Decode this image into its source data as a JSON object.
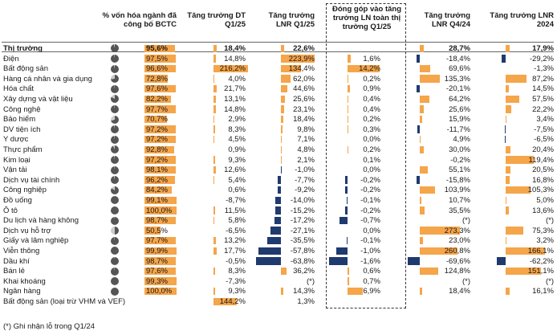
{
  "chart_data": {
    "type": "table",
    "columns": [
      {
        "key": "pct",
        "label": "% vốn hóa ngành đã công bố BCTC"
      },
      {
        "key": "dt",
        "label": "Tăng trưởng DT Q1/25"
      },
      {
        "key": "lnr",
        "label": "Tăng trưởng LNR Q1/25"
      },
      {
        "key": "contrib",
        "label": "Đóng góp vào tăng trưởng LN toàn thị trường Q1/25"
      },
      {
        "key": "q424",
        "label": "Tăng trưởng LNR Q4/24"
      },
      {
        "key": "y24",
        "label": "Tăng trưởng LNR 2024"
      }
    ],
    "colors": {
      "positive": "#f5a54a",
      "negative": "#1f3a6e",
      "highlight": "#f5a54a",
      "pie_fill": "#555555",
      "pie_bg": "#cccccc"
    },
    "rows": [
      {
        "name": "Thị trường",
        "bold": true,
        "pct": "95,6%",
        "dt": "18,4%",
        "lnr": "22,6%",
        "contrib": "",
        "q424": "28,7%",
        "y24": "17,9%",
        "pct_v": 95.6,
        "dt_v": 18.4,
        "lnr_v": 22.6,
        "contrib_v": null,
        "q424_v": 28.7,
        "y24_v": 17.9
      },
      {
        "name": "Điện",
        "pct": "97,5%",
        "dt": "14,8%",
        "lnr": "223,9%",
        "contrib": "1,6%",
        "q424": "-18,4%",
        "y24": "-29,2%",
        "pct_v": 97.5,
        "dt_v": 14.8,
        "lnr_v": 223.9,
        "contrib_v": 1.6,
        "q424_v": -18.4,
        "y24_v": -29.2
      },
      {
        "name": "Bất động sản",
        "pct": "96,6%",
        "dt": "216,2%",
        "lnr": "134,4%",
        "contrib": "14,2%",
        "q424": "69,6%",
        "y24": "-1,3%",
        "pct_v": 96.6,
        "dt_v": 216.2,
        "lnr_v": 134.4,
        "contrib_v": 14.2,
        "q424_v": 69.6,
        "y24_v": -1.3
      },
      {
        "name": "Hàng cá nhân và gia dụng",
        "pct": "72,8%",
        "dt": "4,0%",
        "lnr": "62,0%",
        "contrib": "0,2%",
        "q424": "135,3%",
        "y24": "87,2%",
        "pct_v": 72.8,
        "dt_v": 4.0,
        "lnr_v": 62.0,
        "contrib_v": 0.2,
        "q424_v": 135.3,
        "y24_v": 87.2
      },
      {
        "name": "Hóa chất",
        "pct": "97,6%",
        "dt": "21,7%",
        "lnr": "44,6%",
        "contrib": "0,9%",
        "q424": "-20,1%",
        "y24": "14,5%",
        "pct_v": 97.6,
        "dt_v": 21.7,
        "lnr_v": 44.6,
        "contrib_v": 0.9,
        "q424_v": -20.1,
        "y24_v": 14.5
      },
      {
        "name": "Xây dựng và vật liệu",
        "pct": "82,2%",
        "dt": "13,1%",
        "lnr": "25,6%",
        "contrib": "0,4%",
        "q424": "64,2%",
        "y24": "57,5%",
        "pct_v": 82.2,
        "dt_v": 13.1,
        "lnr_v": 25.6,
        "contrib_v": 0.4,
        "q424_v": 64.2,
        "y24_v": 57.5
      },
      {
        "name": "Công nghệ",
        "pct": "97,7%",
        "dt": "14,8%",
        "lnr": "23,1%",
        "contrib": "0,4%",
        "q424": "25,6%",
        "y24": "22,2%",
        "pct_v": 97.7,
        "dt_v": 14.8,
        "lnr_v": 23.1,
        "contrib_v": 0.4,
        "q424_v": 25.6,
        "y24_v": 22.2
      },
      {
        "name": "Bảo hiểm",
        "pct": "70,7%",
        "dt": "2,9%",
        "lnr": "18,4%",
        "contrib": "0,2%",
        "q424": "15,9%",
        "y24": "3,4%",
        "pct_v": 70.7,
        "dt_v": 2.9,
        "lnr_v": 18.4,
        "contrib_v": 0.2,
        "q424_v": 15.9,
        "y24_v": 3.4
      },
      {
        "name": "DV tiện ích",
        "pct": "97,2%",
        "dt": "8,3%",
        "lnr": "9,8%",
        "contrib": "0,3%",
        "q424": "-11,7%",
        "y24": "-7,5%",
        "pct_v": 97.2,
        "dt_v": 8.3,
        "lnr_v": 9.8,
        "contrib_v": 0.3,
        "q424_v": -11.7,
        "y24_v": -7.5
      },
      {
        "name": "Y dược",
        "pct": "97,2%",
        "dt": "4,5%",
        "lnr": "7,1%",
        "contrib": "0,0%",
        "q424": "4,9%",
        "y24": "-6,5%",
        "pct_v": 97.2,
        "dt_v": 4.5,
        "lnr_v": 7.1,
        "contrib_v": 0.0,
        "q424_v": 4.9,
        "y24_v": -6.5
      },
      {
        "name": "Thực phẩm",
        "pct": "92,8%",
        "dt": "0,9%",
        "lnr": "4,8%",
        "contrib": "0,2%",
        "q424": "30,0%",
        "y24": "20,4%",
        "pct_v": 92.8,
        "dt_v": 0.9,
        "lnr_v": 4.8,
        "contrib_v": 0.2,
        "q424_v": 30.0,
        "y24_v": 20.4
      },
      {
        "name": "Kim loại",
        "pct": "97,2%",
        "dt": "9,3%",
        "lnr": "2,1%",
        "contrib": "0,1%",
        "q424": "-0,2%",
        "y24": "119,4%",
        "pct_v": 97.2,
        "dt_v": 9.3,
        "lnr_v": 2.1,
        "contrib_v": 0.1,
        "q424_v": -0.2,
        "y24_v": 119.4
      },
      {
        "name": "Vận tải",
        "pct": "98,1%",
        "dt": "12,6%",
        "lnr": "-1,0%",
        "contrib": "0,0%",
        "q424": "55,1%",
        "y24": "20,5%",
        "pct_v": 98.1,
        "dt_v": 12.6,
        "lnr_v": -1.0,
        "contrib_v": 0.0,
        "q424_v": 55.1,
        "y24_v": 20.5
      },
      {
        "name": "Dịch vụ tài chính",
        "pct": "96,2%",
        "dt": "5,4%",
        "lnr": "-7,7%",
        "contrib": "-0,2%",
        "q424": "-15,8%",
        "y24": "16,8%",
        "pct_v": 96.2,
        "dt_v": 5.4,
        "lnr_v": -7.7,
        "contrib_v": -0.2,
        "q424_v": -15.8,
        "y24_v": 16.8
      },
      {
        "name": "Công nghiệp",
        "pct": "84,2%",
        "dt": "0,6%",
        "lnr": "-9,2%",
        "contrib": "-0,2%",
        "q424": "103,9%",
        "y24": "105,3%",
        "pct_v": 84.2,
        "dt_v": 0.6,
        "lnr_v": -9.2,
        "contrib_v": -0.2,
        "q424_v": 103.9,
        "y24_v": 105.3
      },
      {
        "name": "Đồ uống",
        "pct": "99,1%",
        "dt": "-8,7%",
        "lnr": "-14,0%",
        "contrib": "-0,1%",
        "q424": "10,7%",
        "y24": "5,0%",
        "pct_v": 99.1,
        "dt_v": -8.7,
        "lnr_v": -14.0,
        "contrib_v": -0.1,
        "q424_v": 10.7,
        "y24_v": 5.0
      },
      {
        "name": "Ô tô",
        "pct": "100,0%",
        "dt": "11,5%",
        "lnr": "-15,2%",
        "contrib": "-0,2%",
        "q424": "35,5%",
        "y24": "13,6%",
        "pct_v": 100.0,
        "dt_v": 11.5,
        "lnr_v": -15.2,
        "contrib_v": -0.2,
        "q424_v": 35.5,
        "y24_v": 13.6
      },
      {
        "name": "Du lịch và hàng không",
        "pct": "98,7%",
        "dt": "5,8%",
        "lnr": "-17,2%",
        "contrib": "-0,7%",
        "q424": "(*)",
        "y24": "(*)",
        "pct_v": 98.7,
        "dt_v": 5.8,
        "lnr_v": -17.2,
        "contrib_v": -0.7,
        "q424_v": null,
        "y24_v": null
      },
      {
        "name": "Dịch vụ hỗ trợ",
        "pct": "50,5%",
        "dt": "-6,5%",
        "lnr": "-27,1%",
        "contrib": "0,0%",
        "q424": "273,3%",
        "y24": "75,3%",
        "pct_v": 50.5,
        "dt_v": -6.5,
        "lnr_v": -27.1,
        "contrib_v": 0.0,
        "q424_v": 273.3,
        "y24_v": 75.3
      },
      {
        "name": "Giấy và lâm nghiệp",
        "pct": "97,7%",
        "dt": "13,2%",
        "lnr": "-35,5%",
        "contrib": "-0,1%",
        "q424": "23,0%",
        "y24": "3,2%",
        "pct_v": 97.7,
        "dt_v": 13.2,
        "lnr_v": -35.5,
        "contrib_v": -0.1,
        "q424_v": 23.0,
        "y24_v": 3.2
      },
      {
        "name": "Viễn thông",
        "pct": "99,9%",
        "dt": "17,7%",
        "lnr": "-57,8%",
        "contrib": "-1,0%",
        "q424": "260,8%",
        "y24": "166,1%",
        "pct_v": 99.9,
        "dt_v": 17.7,
        "lnr_v": -57.8,
        "contrib_v": -1.0,
        "q424_v": 260.8,
        "y24_v": 166.1
      },
      {
        "name": "Dầu khí",
        "pct": "98,7%",
        "dt": "-0,5%",
        "lnr": "-63,8%",
        "contrib": "-1,6%",
        "q424": "-69,6%",
        "y24": "-62,2%",
        "pct_v": 98.7,
        "dt_v": -0.5,
        "lnr_v": -63.8,
        "contrib_v": -1.6,
        "q424_v": -69.6,
        "y24_v": -62.2
      },
      {
        "name": "Bán lẻ",
        "pct": "97,6%",
        "dt": "8,3%",
        "lnr": "36,2%",
        "contrib": "0,6%",
        "q424": "124,8%",
        "y24": "151,1%",
        "pct_v": 97.6,
        "dt_v": 8.3,
        "lnr_v": 36.2,
        "contrib_v": 0.6,
        "q424_v": 124.8,
        "y24_v": 151.1
      },
      {
        "name": "Khai khoáng",
        "pct": "99,3%",
        "dt": "-7,3%",
        "lnr": "(*)",
        "contrib": "0,7%",
        "q424": "(*)",
        "y24": "(*)",
        "pct_v": 99.3,
        "dt_v": -7.3,
        "lnr_v": null,
        "contrib_v": 0.7,
        "q424_v": null,
        "y24_v": null
      },
      {
        "name": "Ngân hàng",
        "pct": "100,0%",
        "dt": "9,3%",
        "lnr": "14,3%",
        "contrib": "6,9%",
        "q424": "18,4%",
        "y24": "16,1%",
        "pct_v": 100.0,
        "dt_v": 9.3,
        "lnr_v": 14.3,
        "contrib_v": 6.9,
        "q424_v": 18.4,
        "y24_v": 16.1
      },
      {
        "name": "Bất động sản (loại trừ VHM và VEF)",
        "pct": "",
        "dt": "144,2%",
        "lnr": "1,3%",
        "contrib": "",
        "q424": "",
        "y24": "",
        "pct_v": null,
        "dt_v": 144.2,
        "lnr_v": 1.3,
        "contrib_v": null,
        "q424_v": null,
        "y24_v": null
      }
    ],
    "footnote": "(*) Ghi nhận lỗ trong Q1/24"
  }
}
